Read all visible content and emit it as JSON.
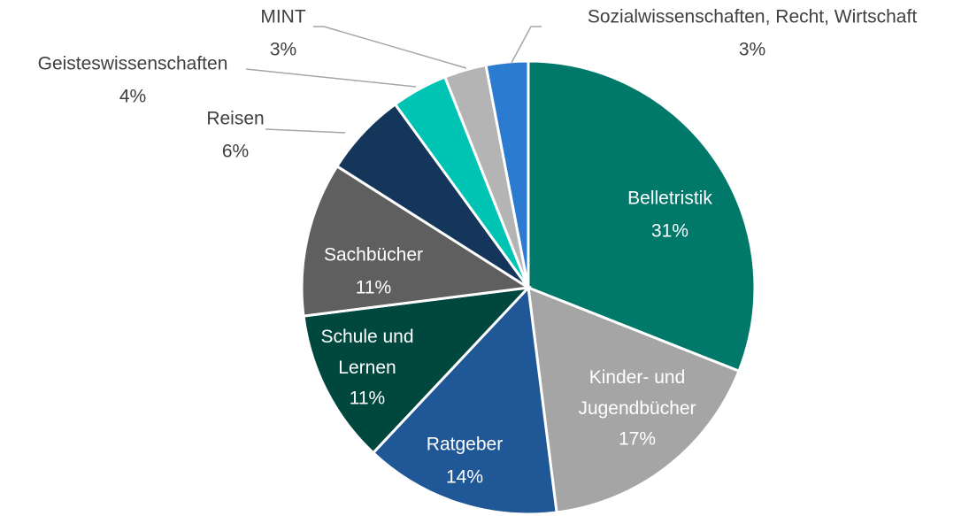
{
  "chart_data": {
    "type": "pie",
    "categories": [
      "Belletristik",
      "Kinder- und Jugendbücher",
      "Ratgeber",
      "Schule und Lernen",
      "Sachbücher",
      "Reisen",
      "Geisteswissenschaften",
      "MINT",
      "Sozialwissenschaften, Recht, Wirtschaft"
    ],
    "values": [
      31,
      17,
      14,
      11,
      11,
      6,
      4,
      3,
      3
    ],
    "value_labels": [
      "31%",
      "17%",
      "14%",
      "11%",
      "11%",
      "6%",
      "4%",
      "3%",
      "3%"
    ],
    "colors": [
      "#00786a",
      "#a5a5a5",
      "#1f5797",
      "#00473e",
      "#5f5f5f",
      "#14365a",
      "#00c4b3",
      "#b4b4b4",
      "#2b7bd0"
    ]
  }
}
